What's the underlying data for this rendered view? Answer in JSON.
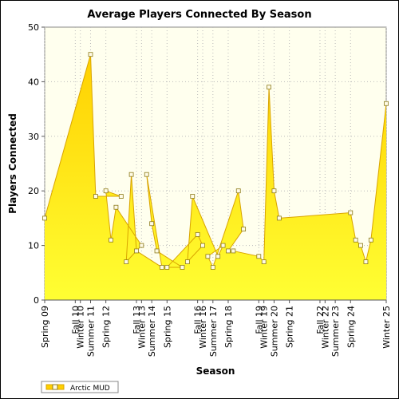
{
  "chart_data": {
    "type": "area",
    "title": "Average Players Connected By Season",
    "xlabel": "Season",
    "ylabel": "Players Connected",
    "ylim": [
      0,
      50
    ],
    "yticks": [
      0,
      10,
      20,
      30,
      40,
      50
    ],
    "grid": true,
    "legend_position": "bottom-left",
    "colors": {
      "fill_top": "#ffdd00",
      "fill_bottom": "#ffff33",
      "line": "#d9a400",
      "marker_fill": "#fffbe6",
      "marker_stroke": "#8c7a1a",
      "plot_bg": "#ffffee"
    },
    "x_tick_labels": [
      "Spring 09",
      "Winter 10",
      "Fall 10",
      "Summer 11",
      "Spring 12",
      "Winter 13",
      "Fall 13",
      "Summer 14",
      "Spring 15",
      "Winter 16",
      "Fall 16",
      "Summer 17",
      "Spring 18",
      "Winter 19",
      "Fall 19",
      "Summer 20",
      "Spring 21",
      "Winter 22",
      "Fall 22",
      "Summer 23",
      "Spring 24",
      "Winter 25"
    ],
    "series": [
      {
        "name": "Arctic MUD",
        "points": [
          [
            "Spring 09",
            15
          ],
          [
            "Summer 11",
            45
          ],
          [
            "Fall 11",
            19
          ],
          [
            "Winter 12",
            19
          ],
          [
            "Spring 12",
            20
          ],
          [
            "Summer 12",
            11
          ],
          [
            "Fall 12",
            17
          ],
          [
            "Winter 13",
            10
          ],
          [
            "Spring 13",
            7
          ],
          [
            "Summer 13",
            23
          ],
          [
            "Fall 13",
            9
          ],
          [
            "Winter 14",
            6
          ],
          [
            "Spring 14",
            23
          ],
          [
            "Summer 14",
            14
          ],
          [
            "Fall 14",
            9
          ],
          [
            "Winter 15",
            6
          ],
          [
            "Spring 15",
            6
          ],
          [
            "Fall 16",
            12
          ],
          [
            "Winter 16",
            10
          ],
          [
            "Spring 16",
            7
          ],
          [
            "Summer 16",
            19
          ],
          [
            "Fall 17",
            8
          ],
          [
            "Winter 17",
            10
          ],
          [
            "Spring 17",
            8
          ],
          [
            "Summer 17",
            6
          ],
          [
            "Fall 18",
            20
          ],
          [
            "Winter 18",
            13
          ],
          [
            "Spring 18",
            9
          ],
          [
            "Summer 18",
            9
          ],
          [
            "Fall 19",
            8
          ],
          [
            "Winter 19",
            7
          ],
          [
            "Spring 20",
            39
          ],
          [
            "Summer 20",
            20
          ],
          [
            "Fall 20",
            15
          ],
          [
            "Spring 24",
            16
          ],
          [
            "Summer 24",
            11
          ],
          [
            "Fall 24",
            10
          ],
          [
            "Winter 24",
            7
          ],
          [
            "Spring 25",
            11
          ],
          [
            "Winter 25",
            36
          ]
        ]
      }
    ]
  }
}
